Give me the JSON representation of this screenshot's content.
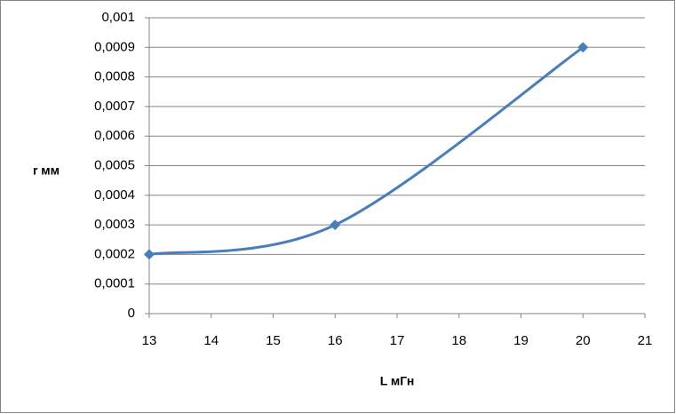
{
  "chart_data": {
    "type": "scatter",
    "smooth": true,
    "marker": "diamond",
    "color": "#4a7ebb",
    "x": [
      13,
      16,
      20
    ],
    "values": [
      0.0002,
      0.0003,
      0.0009
    ],
    "xlabel": "L мГн",
    "ylabel": "r мм",
    "xlim": [
      13,
      21
    ],
    "xticks": [
      13,
      14,
      15,
      16,
      17,
      18,
      19,
      20,
      21
    ],
    "ylim": [
      0,
      0.001
    ],
    "yticks": [
      0,
      {
        "value": 0.0001,
        "label": "0,0001"
      },
      {
        "value": 0.0002,
        "label": "0,0002"
      },
      {
        "value": 0.0003,
        "label": "0,0003"
      },
      {
        "value": 0.0004,
        "label": "0,0004"
      },
      {
        "value": 0.0005,
        "label": "0,0005"
      },
      {
        "value": 0.0006,
        "label": "0,0006"
      },
      {
        "value": 0.0007,
        "label": "0,0007"
      },
      {
        "value": 0.0008,
        "label": "0,0008"
      },
      {
        "value": 0.0009,
        "label": "0,0009"
      },
      {
        "value": 0.001,
        "label": "0,001"
      }
    ],
    "grid": true
  }
}
